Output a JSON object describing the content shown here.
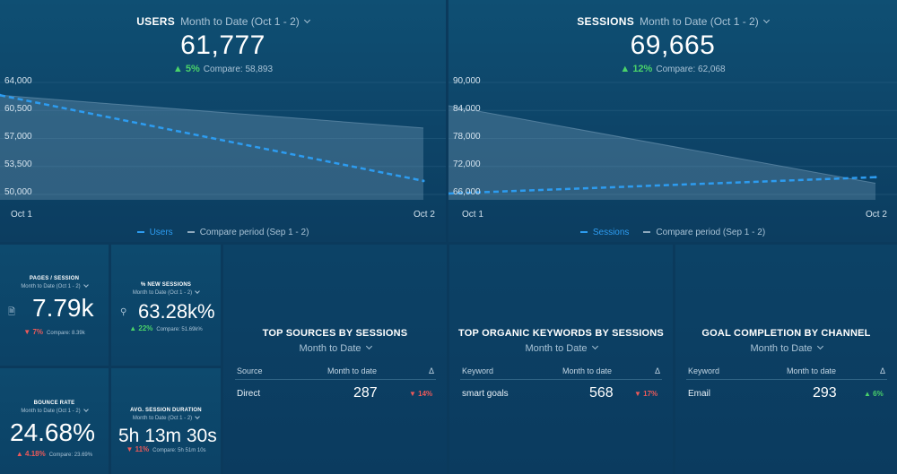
{
  "users": {
    "title": "USERS",
    "period": "Month to Date (Oct 1 - 2)",
    "value": "61,777",
    "delta": "5%",
    "compare": "Compare: 58,893",
    "y_ticks": [
      "64,000",
      "60,500",
      "57,000",
      "53,500",
      "50,000"
    ],
    "x_ticks": [
      "Oct 1",
      "Oct 2"
    ],
    "legend": {
      "series": "Users",
      "compare": "Compare period (Sep 1 - 2)"
    }
  },
  "sessions": {
    "title": "SESSIONS",
    "period": "Month to Date (Oct 1 - 2)",
    "value": "69,665",
    "delta": "12%",
    "compare": "Compare: 62,068",
    "y_ticks": [
      "90,000",
      "84,000",
      "78,000",
      "72,000",
      "66,000"
    ],
    "x_ticks": [
      "Oct 1",
      "Oct 2"
    ],
    "legend": {
      "series": "Sessions",
      "compare": "Compare period (Sep 1 - 2)"
    }
  },
  "chart_data": [
    {
      "type": "area",
      "x": [
        "Oct 1",
        "Oct 2"
      ],
      "ylim": [
        50000,
        64000
      ],
      "series": [
        {
          "name": "Users",
          "values": [
            62400,
            51700
          ]
        },
        {
          "name": "Compare period (Sep 1 - 2)",
          "values": [
            62400,
            58300
          ]
        }
      ]
    },
    {
      "type": "area",
      "x": [
        "Oct 1",
        "Oct 2"
      ],
      "ylim": [
        66000,
        90000
      ],
      "series": [
        {
          "name": "Sessions",
          "values": [
            66200,
            69700
          ]
        },
        {
          "name": "Compare period (Sep 1 - 2)",
          "values": [
            85000,
            68400
          ]
        }
      ]
    }
  ],
  "metrics": {
    "pages_session": {
      "title": "PAGES / SESSION",
      "period": "Month to Date (Oct 1 - 2)",
      "value": "7.79k",
      "delta": "7%",
      "compare": "Compare: 8.39k"
    },
    "new_sessions": {
      "title": "% NEW SESSIONS",
      "period": "Month to Date (Oct 1 - 2)",
      "value": "63.28k%",
      "delta": "22%",
      "compare": "Compare: 51.69k%"
    },
    "bounce_rate": {
      "title": "BOUNCE RATE",
      "period": "Month to Date (Oct 1 - 2)",
      "value": "24.68%",
      "delta": "4.18%",
      "compare": "Compare: 23.69%"
    },
    "avg_duration": {
      "title": "AVG. SESSION DURATION",
      "period": "Month to Date (Oct 1 - 2)",
      "value": "5h 13m 30s",
      "delta": "11%",
      "compare": "Compare: 5h 51m 10s"
    }
  },
  "tables": {
    "sources": {
      "title": "TOP SOURCES BY SESSIONS",
      "period": "Month to Date",
      "col1": "Source",
      "col2": "Month to date",
      "col3": "Δ",
      "row": {
        "name": "Direct",
        "value": "287",
        "delta": "14%"
      }
    },
    "keywords": {
      "title": "TOP ORGANIC KEYWORDS BY SESSIONS",
      "period": "Month to Date",
      "col1": "Keyword",
      "col2": "Month to date",
      "col3": "Δ",
      "row": {
        "name": "smart goals",
        "value": "568",
        "delta": "17%"
      }
    },
    "goals": {
      "title": "GOAL COMPLETION BY CHANNEL",
      "period": "Month to Date",
      "col1": "Keyword",
      "col2": "Month to date",
      "col3": "Δ",
      "row": {
        "name": "Email",
        "value": "293",
        "delta": "6%"
      }
    }
  },
  "colors": {
    "background": "#0b3a5c",
    "accent": "#2d9cf0",
    "up": "#4ad26a",
    "down": "#ee5a5a"
  }
}
